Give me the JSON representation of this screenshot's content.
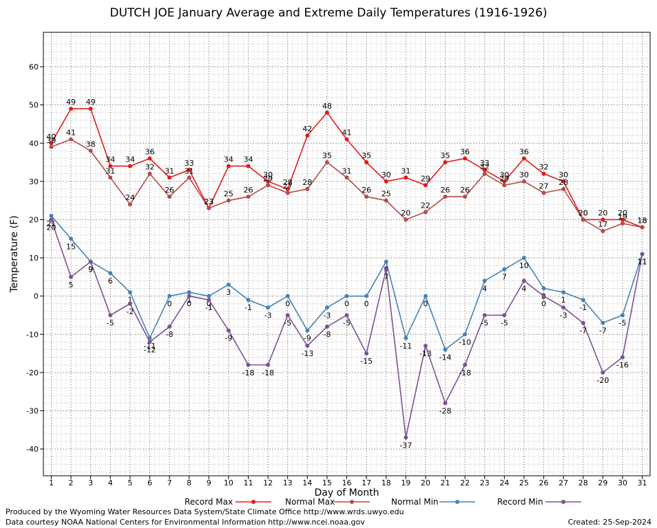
{
  "chart_data": {
    "type": "line",
    "title": "DUTCH JOE January Average and Extreme Daily Temperatures (1916-1926)",
    "xlabel": "Day of Month",
    "ylabel": "Temperature (F)",
    "x": [
      1,
      2,
      3,
      4,
      5,
      6,
      7,
      8,
      9,
      10,
      11,
      12,
      13,
      14,
      15,
      16,
      17,
      18,
      19,
      20,
      21,
      22,
      23,
      24,
      25,
      26,
      27,
      28,
      29,
      30,
      31
    ],
    "xlim": [
      0.6,
      31.4
    ],
    "ylim": [
      -47,
      69
    ],
    "yticks": [
      -40,
      -30,
      -20,
      -10,
      0,
      10,
      20,
      30,
      40,
      50,
      60
    ],
    "grid": true,
    "legend_position": "bottom",
    "series": [
      {
        "name": "Record Max",
        "color": "#e31a1c",
        "values": [
          40,
          49,
          49,
          34,
          34,
          36,
          31,
          33,
          23,
          34,
          34,
          30,
          28,
          42,
          48,
          41,
          35,
          30,
          31,
          29,
          35,
          36,
          33,
          30,
          36,
          32,
          30,
          20,
          20,
          20,
          18
        ]
      },
      {
        "name": "Normal Max",
        "color": "#b54a4a",
        "values": [
          39,
          41,
          38,
          31,
          24,
          32,
          26,
          31,
          23,
          25,
          26,
          29,
          27,
          28,
          35,
          31,
          26,
          25,
          20,
          22,
          26,
          26,
          32,
          29,
          30,
          27,
          28,
          20,
          17,
          19,
          18
        ]
      },
      {
        "name": "Normal Min",
        "color": "#4682b4",
        "values": [
          21,
          15,
          9,
          6,
          1,
          -11,
          0,
          1,
          0,
          3,
          -1,
          -3,
          0,
          -9,
          -3,
          0,
          0,
          9,
          -11,
          0,
          -14,
          -10,
          4,
          7,
          10,
          2,
          1,
          -1,
          -7,
          -5,
          11
        ]
      },
      {
        "name": "Record Min",
        "color": "#7b5294",
        "values": [
          20,
          5,
          9,
          -5,
          -2,
          -12,
          -8,
          0,
          -1,
          -9,
          -18,
          -18,
          -5,
          -13,
          -8,
          -5,
          -15,
          7,
          -37,
          -13,
          -28,
          -18,
          -5,
          -5,
          4,
          0,
          -3,
          -7,
          -20,
          -16,
          11
        ]
      }
    ]
  },
  "footer": {
    "line1": "Produced by the Wyoming Water Resources Data System/State Climate Office http://www.wrds.uwyo.edu",
    "line2": "Data courtesy NOAA National Centers for Environmental Information http://www.ncei.noaa.gov",
    "created": "Created: 25-Sep-2024"
  }
}
